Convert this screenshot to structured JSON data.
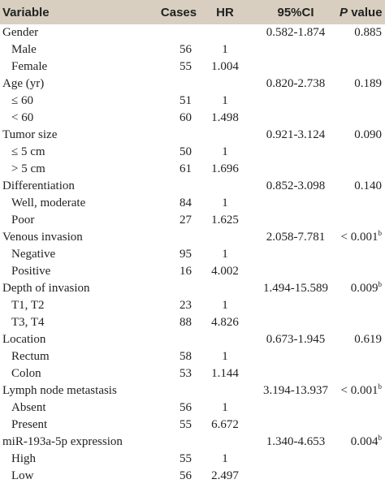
{
  "header": {
    "variable": "Variable",
    "cases": "Cases",
    "hr": "HR",
    "ci": "95%CI",
    "p_italic": "P",
    "p_text": "value"
  },
  "groups": [
    {
      "name": "Gender",
      "ci": "0.582-1.874",
      "p": "0.885",
      "levels": [
        {
          "label": "Male",
          "cases": "56",
          "hr": "1"
        },
        {
          "label": "Female",
          "cases": "55",
          "hr": "1.004"
        }
      ]
    },
    {
      "name": "Age (yr)",
      "ci": "0.820-2.738",
      "p": "0.189",
      "levels": [
        {
          "label": "≤ 60",
          "cases": "51",
          "hr": "1"
        },
        {
          "label": "< 60",
          "cases": "60",
          "hr": "1.498"
        }
      ]
    },
    {
      "name": "Tumor size",
      "ci": "0.921-3.124",
      "p": "0.090",
      "levels": [
        {
          "label": "≤ 5 cm",
          "cases": "50",
          "hr": "1"
        },
        {
          "label": "> 5 cm",
          "cases": "61",
          "hr": "1.696"
        }
      ]
    },
    {
      "name": "Differentiation",
      "ci": "0.852-3.098",
      "p": "0.140",
      "levels": [
        {
          "label": "Well, moderate",
          "cases": "84",
          "hr": "1"
        },
        {
          "label": "Poor",
          "cases": "27",
          "hr": "1.625"
        }
      ]
    },
    {
      "name": "Venous invasion",
      "ci": "2.058-7.781",
      "p": "< 0.001",
      "p_sup": "b",
      "levels": [
        {
          "label": "Negative",
          "cases": "95",
          "hr": "1"
        },
        {
          "label": "Positive",
          "cases": "16",
          "hr": "4.002"
        }
      ]
    },
    {
      "name": "Depth of invasion",
      "ci": "1.494-15.589",
      "p": "0.009",
      "p_sup": "b",
      "levels": [
        {
          "label": "T1, T2",
          "cases": "23",
          "hr": "1"
        },
        {
          "label": "T3, T4",
          "cases": "88",
          "hr": "4.826"
        }
      ]
    },
    {
      "name": "Location",
      "ci": "0.673-1.945",
      "p": "0.619",
      "levels": [
        {
          "label": "Rectum",
          "cases": "58",
          "hr": "1"
        },
        {
          "label": "Colon",
          "cases": "53",
          "hr": "1.144"
        }
      ]
    },
    {
      "name": "Lymph node metastasis",
      "ci": "3.194-13.937",
      "p": "< 0.001",
      "p_sup": "b",
      "levels": [
        {
          "label": "Absent",
          "cases": "56",
          "hr": "1"
        },
        {
          "label": "Present",
          "cases": "55",
          "hr": "6.672"
        }
      ]
    },
    {
      "name": "miR-193a-5p expression",
      "ci": "1.340-4.653",
      "p": "0.004",
      "p_sup": "b",
      "levels": [
        {
          "label": "High",
          "cases": "55",
          "hr": "1"
        },
        {
          "label": "Low",
          "cases": "56",
          "hr": "2.497"
        }
      ]
    }
  ]
}
